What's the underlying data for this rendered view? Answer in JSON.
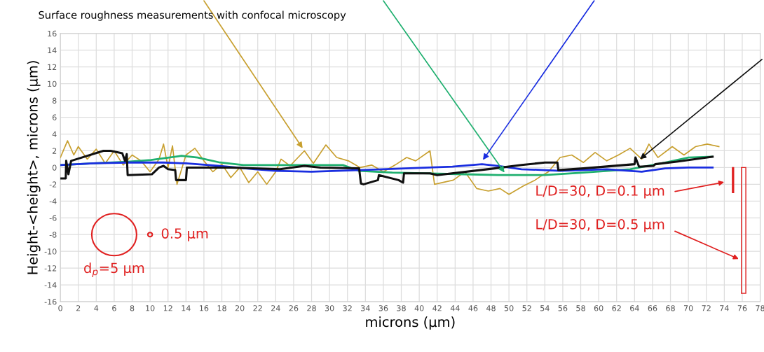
{
  "chart_data": {
    "type": "line",
    "title": "Surface roughness measurements with confocal microscopy",
    "xlabel": "microns (μm)",
    "ylabel": "Height-<height>, microns (μm)",
    "xlim": [
      0,
      78
    ],
    "xticks": [
      0,
      2,
      4,
      6,
      8,
      10,
      12,
      14,
      16,
      18,
      20,
      22,
      24,
      26,
      28,
      30,
      32,
      34,
      36,
      38,
      40,
      42,
      44,
      46,
      48,
      50,
      52,
      54,
      56,
      58,
      60,
      62,
      64,
      66,
      68,
      70,
      72,
      74,
      76,
      78
    ],
    "ylim": [
      -16,
      16
    ],
    "yticks": [
      -16,
      -14,
      -12,
      -10,
      -8,
      -6,
      -4,
      -2,
      0,
      2,
      4,
      6,
      8,
      10,
      12,
      14,
      16
    ],
    "grid": true,
    "marker": "none",
    "line_style": "solid",
    "annotations": [
      "d$_{p}$=5 μm",
      "0.5 μm",
      "L/D=30, D=0.1 μm",
      "L/D=30, D=0.5 μm"
    ],
    "series": [
      {
        "color": "#c8a030",
        "x": [
          0,
          0.8,
          1.5,
          2,
          3,
          4,
          5,
          6,
          7,
          8,
          9,
          10,
          11,
          11.5,
          12,
          12.5,
          13,
          14,
          15,
          16,
          17,
          18,
          19,
          20,
          21,
          22,
          23,
          24,
          24.6,
          25.6,
          27.2,
          28.2,
          29.6,
          30.8,
          32.1,
          33.4,
          34.7,
          36,
          37.3,
          38.6,
          39.6,
          41.2,
          41.7,
          43.8,
          45.1,
          46.4,
          47.7,
          49,
          50,
          51.6,
          52.9,
          53.6,
          54.4,
          55.7,
          57,
          58.3,
          59.6,
          60.9,
          62.2,
          63.5,
          64.8,
          65.6,
          66.6,
          68.2,
          69.5,
          70.8,
          72.1,
          73.4
        ],
        "values": [
          1.2,
          3.2,
          1.5,
          2.5,
          1,
          2.2,
          0.5,
          2,
          0.3,
          1.5,
          0.8,
          -0.5,
          1,
          2.8,
          0,
          2.6,
          -2,
          1.5,
          2.3,
          0.8,
          -0.5,
          0.4,
          -1.2,
          0,
          -1.8,
          -0.5,
          -2,
          -0.5,
          1,
          0.2,
          2,
          0.5,
          2.7,
          1.2,
          0.8,
          0,
          0.3,
          -0.5,
          0.3,
          1.2,
          0.8,
          2,
          -2,
          -1.5,
          -0.5,
          -2.5,
          -2.8,
          -2.5,
          -3.2,
          -2.2,
          -1.5,
          -1,
          -0.5,
          1.2,
          1.5,
          0.6,
          1.8,
          0.8,
          1.5,
          2.3,
          1,
          2.8,
          1.2,
          2.5,
          1.5,
          2.5,
          2.8,
          2.5
        ]
      },
      {
        "color": "#20b070",
        "x": [
          0,
          3.7,
          7.5,
          10.1,
          13.5,
          15.3,
          17.8,
          20.4,
          24.3,
          31.5,
          33.3,
          37,
          41.2,
          45,
          48.8,
          54,
          58.3,
          63.5,
          67.4,
          70,
          72.6
        ],
        "values": [
          0.3,
          0.5,
          0.7,
          0.9,
          1.4,
          1.2,
          0.6,
          0.3,
          0.3,
          0.3,
          -0.4,
          -0.6,
          -0.7,
          -0.8,
          -0.9,
          -0.9,
          -0.6,
          -0.2,
          0.6,
          1.2,
          1.3
        ]
      },
      {
        "color": "#1a2ee0",
        "x": [
          0,
          3.7,
          7.5,
          11.5,
          14,
          17.8,
          21.7,
          24,
          28,
          33.3,
          38.5,
          43.7,
          47,
          48.8,
          51.4,
          54,
          55.7,
          60.9,
          64.8,
          67.4,
          70,
          72.7
        ],
        "values": [
          0.3,
          0.5,
          0.6,
          0.6,
          0.5,
          0.2,
          -0.2,
          -0.4,
          -0.5,
          -0.3,
          -0.1,
          0.1,
          0.4,
          0.2,
          -0.2,
          -0.3,
          -0.4,
          -0.2,
          -0.5,
          -0.1,
          0,
          0
        ]
      },
      {
        "type": "bar",
        "color": "#e02020",
        "x": [
          76.15
        ],
        "values": [
          -15
        ]
      },
      {
        "color": "#101010",
        "x": [
          0,
          0.6,
          0.65,
          0.9,
          1.2,
          4.8,
          5.6,
          6.9,
          7.2,
          7.4,
          7.5,
          10.2,
          11,
          11.5,
          12,
          12.8,
          12.9,
          14,
          14.1,
          19,
          24.5,
          27.2,
          29,
          33.3,
          33.5,
          33.8,
          35.4,
          35.5,
          37.7,
          38.2,
          38.3,
          41.2,
          42,
          48.4,
          51.4,
          54,
          55.4,
          55.5,
          58.3,
          64,
          64.1,
          64.5,
          66.1,
          66.3,
          68.7,
          72.7
        ],
        "values": [
          -1.3,
          -1.3,
          0.8,
          -0.8,
          0.8,
          2,
          2,
          1.7,
          0.8,
          1.6,
          -0.9,
          -0.8,
          0,
          0.2,
          -0.2,
          -0.3,
          -1.5,
          -1.5,
          0,
          0,
          -0.2,
          0.2,
          0,
          -0.1,
          -1.9,
          -2,
          -1.5,
          -0.9,
          -1.5,
          -1.8,
          -0.7,
          -0.7,
          -0.9,
          -0.1,
          0.3,
          0.6,
          0.6,
          -0.3,
          -0.1,
          0.4,
          1.2,
          0.1,
          0.2,
          0.4,
          0.7,
          1.3
        ]
      }
    ]
  }
}
